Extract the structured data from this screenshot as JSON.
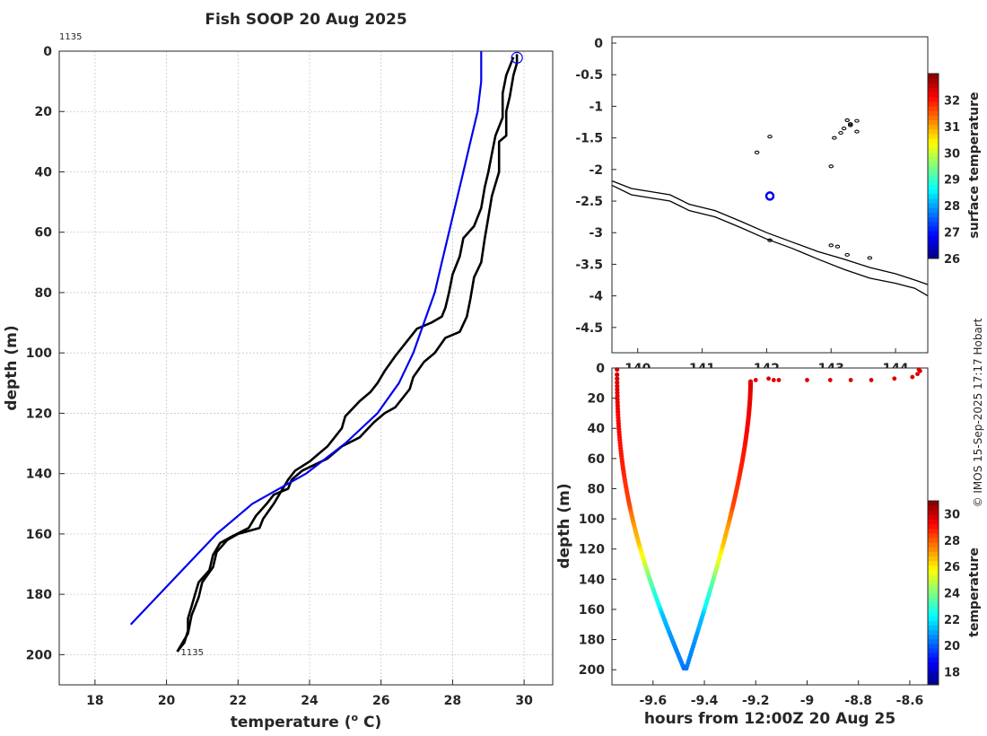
{
  "figure": {
    "title": "Fish SOOP 20 Aug 2025",
    "credit": "© IMOS 15-Sep-2025 17:17 Hobart"
  },
  "colors": {
    "observed": "#000000",
    "climatology": "#0000ee",
    "grid": "#c8c8c8",
    "axis": "#262626"
  },
  "chart_data": [
    {
      "id": "profile",
      "type": "line",
      "title": "Fish SOOP 20 Aug 2025",
      "xlabel": "temperature (",
      "xlabel_sup": "o",
      "xlabel_end": " C)",
      "ylabel": "depth (m)",
      "xlim": [
        17,
        30.8
      ],
      "ylim": [
        210,
        0
      ],
      "xticks": [
        "18",
        "20",
        "22",
        "24",
        "26",
        "28",
        "30"
      ],
      "yticks": [
        "0",
        "20",
        "40",
        "60",
        "80",
        "100",
        "120",
        "140",
        "160",
        "180",
        "200"
      ],
      "grid": true,
      "profile_id_top": "1135",
      "profile_id_bottom": "1135",
      "surface_marker": {
        "temperature": 29.8,
        "depth": 1
      },
      "series": [
        {
          "name": "descent",
          "color": "#000000",
          "points": [
            [
              29.8,
              1
            ],
            [
              29.8,
              4
            ],
            [
              29.7,
              8
            ],
            [
              29.6,
              15
            ],
            [
              29.5,
              20
            ],
            [
              29.5,
              28
            ],
            [
              29.3,
              30
            ],
            [
              29.3,
              40
            ],
            [
              29.2,
              44
            ],
            [
              29.1,
              48
            ],
            [
              29.0,
              55
            ],
            [
              28.9,
              62
            ],
            [
              28.8,
              70
            ],
            [
              28.6,
              75
            ],
            [
              28.5,
              82
            ],
            [
              28.4,
              88
            ],
            [
              28.2,
              93
            ],
            [
              27.8,
              95
            ],
            [
              27.5,
              100
            ],
            [
              27.2,
              103
            ],
            [
              26.9,
              108
            ],
            [
              26.8,
              112
            ],
            [
              26.4,
              118
            ],
            [
              26.1,
              120
            ],
            [
              25.8,
              123
            ],
            [
              25.4,
              128
            ],
            [
              24.9,
              131
            ],
            [
              24.5,
              135
            ],
            [
              23.8,
              139
            ],
            [
              23.5,
              142
            ],
            [
              23.4,
              145
            ],
            [
              23.0,
              147
            ],
            [
              22.8,
              150
            ],
            [
              22.5,
              154
            ],
            [
              22.3,
              158
            ],
            [
              21.8,
              161
            ],
            [
              21.5,
              163
            ],
            [
              21.3,
              167
            ],
            [
              21.2,
              172
            ],
            [
              20.9,
              176
            ],
            [
              20.8,
              180
            ],
            [
              20.7,
              184
            ],
            [
              20.6,
              188
            ],
            [
              20.6,
              192
            ],
            [
              20.5,
              196
            ],
            [
              20.3,
              199
            ]
          ]
        },
        {
          "name": "ascent",
          "color": "#000000",
          "points": [
            [
              29.7,
              2
            ],
            [
              29.5,
              8
            ],
            [
              29.4,
              14
            ],
            [
              29.4,
              22
            ],
            [
              29.2,
              28
            ],
            [
              29.1,
              34
            ],
            [
              29.0,
              40
            ],
            [
              28.9,
              45
            ],
            [
              28.8,
              52
            ],
            [
              28.6,
              58
            ],
            [
              28.3,
              62
            ],
            [
              28.2,
              68
            ],
            [
              28.0,
              74
            ],
            [
              27.9,
              80
            ],
            [
              27.8,
              85
            ],
            [
              27.7,
              88
            ],
            [
              27.4,
              90
            ],
            [
              27.0,
              92
            ],
            [
              26.8,
              95
            ],
            [
              26.6,
              98
            ],
            [
              26.4,
              101
            ],
            [
              26.1,
              106
            ],
            [
              25.9,
              110
            ],
            [
              25.7,
              113
            ],
            [
              25.4,
              116
            ],
            [
              25.0,
              121
            ],
            [
              24.9,
              125
            ],
            [
              24.5,
              131
            ],
            [
              24.0,
              136
            ],
            [
              23.6,
              139
            ],
            [
              23.4,
              142
            ],
            [
              23.2,
              146
            ],
            [
              23.0,
              150
            ],
            [
              22.7,
              155
            ],
            [
              22.6,
              158
            ],
            [
              22.0,
              160
            ],
            [
              21.7,
              162
            ],
            [
              21.4,
              166
            ],
            [
              21.3,
              171
            ],
            [
              21.0,
              176
            ],
            [
              20.9,
              181
            ],
            [
              20.7,
              187
            ],
            [
              20.6,
              193
            ],
            [
              20.4,
              197
            ],
            [
              20.3,
              199
            ]
          ]
        },
        {
          "name": "climatology",
          "color": "#0000ee",
          "points": [
            [
              28.8,
              0
            ],
            [
              28.8,
              10
            ],
            [
              28.7,
              20
            ],
            [
              28.5,
              30
            ],
            [
              28.3,
              40
            ],
            [
              28.1,
              50
            ],
            [
              27.9,
              60
            ],
            [
              27.7,
              70
            ],
            [
              27.5,
              80
            ],
            [
              27.2,
              90
            ],
            [
              26.9,
              100
            ],
            [
              26.5,
              110
            ],
            [
              25.9,
              120
            ],
            [
              25.0,
              130
            ],
            [
              23.9,
              140
            ],
            [
              22.4,
              150
            ],
            [
              21.4,
              160
            ],
            [
              20.6,
              170
            ],
            [
              19.8,
              180
            ],
            [
              19.0,
              190
            ]
          ]
        }
      ]
    },
    {
      "id": "map",
      "type": "scatter",
      "xlim": [
        139.6,
        144.5
      ],
      "ylim": [
        -4.9,
        0.1
      ],
      "xticks": [
        "140",
        "141",
        "142",
        "143",
        "144"
      ],
      "yticks": [
        "0",
        "-0.5",
        "-1",
        "-1.5",
        "-2",
        "-2.5",
        "-3",
        "-3.5",
        "-4",
        "-4.5"
      ],
      "colorbar_label": "surface temperature",
      "colorbar_ticks": [
        "26",
        "27",
        "28",
        "29",
        "30",
        "31",
        "32"
      ],
      "colorbar_range": [
        26,
        33
      ],
      "position_marker": {
        "lon": 142.05,
        "lat": -2.42
      },
      "coastlines": [
        [
          [
            139.6,
            -2.18
          ],
          [
            139.9,
            -2.3
          ],
          [
            140.2,
            -2.35
          ],
          [
            140.5,
            -2.4
          ],
          [
            140.8,
            -2.55
          ],
          [
            141.2,
            -2.65
          ],
          [
            141.6,
            -2.82
          ],
          [
            142.0,
            -3.0
          ],
          [
            142.4,
            -3.15
          ],
          [
            142.8,
            -3.3
          ],
          [
            143.2,
            -3.42
          ],
          [
            143.6,
            -3.55
          ],
          [
            144.0,
            -3.65
          ],
          [
            144.3,
            -3.75
          ],
          [
            144.5,
            -3.82
          ]
        ],
        [
          [
            139.6,
            -2.25
          ],
          [
            139.9,
            -2.4
          ],
          [
            140.2,
            -2.45
          ],
          [
            140.5,
            -2.5
          ],
          [
            140.8,
            -2.65
          ],
          [
            141.2,
            -2.75
          ],
          [
            141.6,
            -2.92
          ],
          [
            142.0,
            -3.1
          ],
          [
            142.4,
            -3.25
          ],
          [
            142.8,
            -3.42
          ],
          [
            143.2,
            -3.58
          ],
          [
            143.6,
            -3.72
          ],
          [
            144.0,
            -3.8
          ],
          [
            144.3,
            -3.88
          ],
          [
            144.5,
            -4.0
          ]
        ]
      ],
      "islands": [
        [
          141.85,
          -1.73
        ],
        [
          142.05,
          -1.48
        ],
        [
          143.0,
          -1.95
        ],
        [
          143.05,
          -1.5
        ],
        [
          143.15,
          -1.42
        ],
        [
          143.2,
          -1.35
        ],
        [
          143.3,
          -1.28
        ],
        [
          143.4,
          -1.23
        ],
        [
          143.25,
          -1.22
        ],
        [
          143.3,
          -1.3
        ],
        [
          143.4,
          -1.4
        ],
        [
          143.1,
          -3.22
        ],
        [
          143.25,
          -3.35
        ],
        [
          143.6,
          -3.4
        ],
        [
          143.0,
          -3.2
        ],
        [
          142.05,
          -3.12
        ]
      ]
    },
    {
      "id": "section",
      "type": "scatter",
      "xlabel": "hours from 12:00Z 20 Aug 25",
      "ylabel": "depth (m)",
      "xlim": [
        -9.76,
        -8.53
      ],
      "ylim": [
        210,
        0
      ],
      "xticks": [
        "-9.6",
        "-9.4",
        "-9.2",
        "-9",
        "-8.8",
        "-8.6"
      ],
      "xtick_values": [
        -9.6,
        -9.4,
        -9.2,
        -9.0,
        -8.8,
        -8.6
      ],
      "yticks": [
        "0",
        "20",
        "40",
        "60",
        "80",
        "100",
        "120",
        "140",
        "160",
        "180",
        "200"
      ],
      "colorbar_label": "temperature",
      "colorbar_ticks": [
        "18",
        "20",
        "22",
        "24",
        "26",
        "28",
        "30"
      ],
      "colorbar_range": [
        17,
        31
      ],
      "descent": {
        "t_start": -9.74,
        "t_end": -9.48,
        "depth_max": 199
      },
      "ascent": {
        "t_start": -9.47,
        "t_end": -9.22,
        "depth_min": 9
      },
      "surface_points": [
        [
          -9.2,
          8
        ],
        [
          -9.15,
          7
        ],
        [
          -9.13,
          8
        ],
        [
          -9.11,
          8
        ],
        [
          -9.0,
          8
        ],
        [
          -8.91,
          8
        ],
        [
          -8.83,
          8
        ],
        [
          -8.75,
          8
        ],
        [
          -8.66,
          7
        ],
        [
          -8.59,
          6
        ],
        [
          -8.57,
          4
        ],
        [
          -8.56,
          2
        ],
        [
          -8.565,
          1
        ]
      ]
    }
  ]
}
